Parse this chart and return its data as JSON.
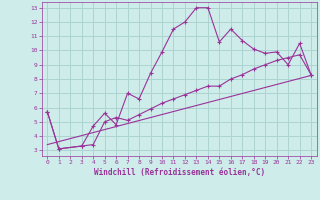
{
  "xlabel": "Windchill (Refroidissement éolien,°C)",
  "background_color": "#ceecea",
  "grid_color": "#aed4d2",
  "line_color": "#993399",
  "xlim": [
    -0.5,
    23.5
  ],
  "ylim": [
    2.6,
    13.4
  ],
  "xticks": [
    0,
    1,
    2,
    3,
    4,
    5,
    6,
    7,
    8,
    9,
    10,
    11,
    12,
    13,
    14,
    15,
    16,
    17,
    18,
    19,
    20,
    21,
    22,
    23
  ],
  "yticks": [
    3,
    4,
    5,
    6,
    7,
    8,
    9,
    10,
    11,
    12,
    13
  ],
  "series1_x": [
    0,
    1,
    3,
    4,
    5,
    6,
    7,
    8,
    9,
    10,
    11,
    12,
    13,
    14,
    15,
    16,
    17,
    18,
    19,
    20,
    21,
    22,
    23
  ],
  "series1_y": [
    5.7,
    3.1,
    3.3,
    4.7,
    5.6,
    4.8,
    7.0,
    6.6,
    8.4,
    9.9,
    11.5,
    12.0,
    13.0,
    13.0,
    10.6,
    11.5,
    10.7,
    10.1,
    9.8,
    9.9,
    9.0,
    10.5,
    8.3
  ],
  "series2_x": [
    0,
    1,
    3,
    4,
    5,
    6,
    7,
    8,
    9,
    10,
    11,
    12,
    13,
    14,
    15,
    16,
    17,
    18,
    19,
    20,
    21,
    22,
    23
  ],
  "series2_y": [
    5.7,
    3.1,
    3.3,
    3.4,
    5.0,
    5.3,
    5.1,
    5.5,
    5.9,
    6.3,
    6.6,
    6.9,
    7.2,
    7.5,
    7.5,
    8.0,
    8.3,
    8.7,
    9.0,
    9.3,
    9.5,
    9.7,
    8.3
  ],
  "trend_x": [
    0,
    23
  ],
  "trend_y": [
    3.4,
    8.25
  ]
}
